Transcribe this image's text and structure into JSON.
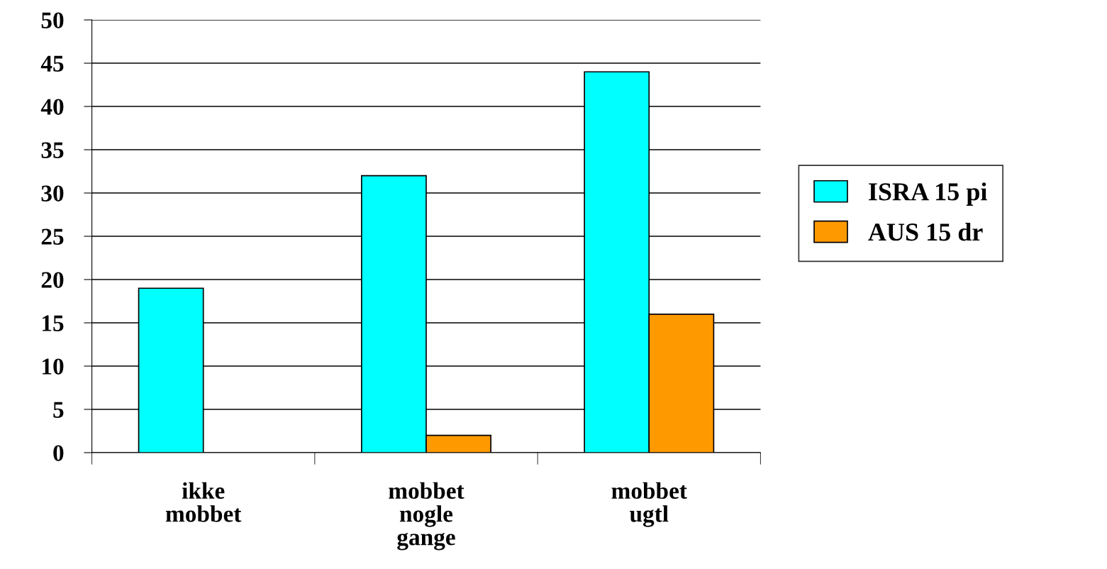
{
  "chart_data": {
    "type": "bar",
    "categories": [
      "ikke\nmobbet",
      "mobbet\nnogle\ngange",
      "mobbet\nugtl"
    ],
    "series": [
      {
        "name": "ISRA 15 pi",
        "color": "#00ffff",
        "values": [
          19,
          32,
          44
        ]
      },
      {
        "name": "AUS 15 dr",
        "color": "#ff9900",
        "values": [
          null,
          2,
          16
        ]
      }
    ],
    "ylim": [
      0,
      50
    ],
    "yticks": [
      0,
      5,
      10,
      15,
      20,
      25,
      30,
      35,
      40,
      45,
      50
    ],
    "grid": "y",
    "legend": "right"
  }
}
